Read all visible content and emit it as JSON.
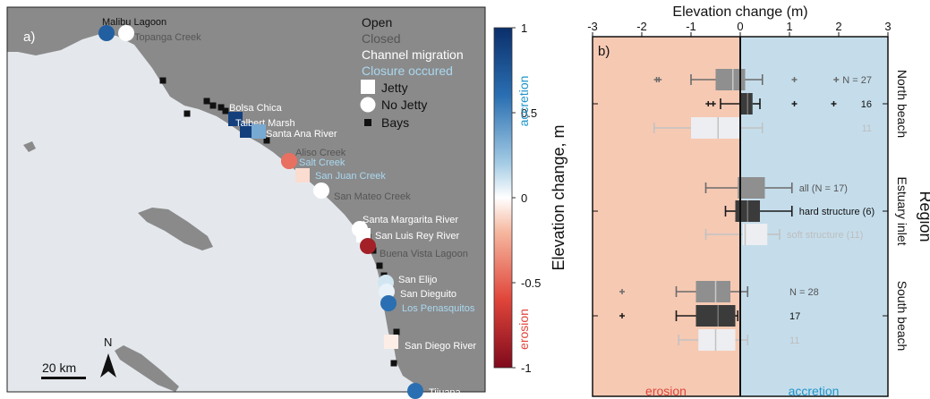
{
  "colors": {
    "land": "#8a8a8b",
    "ocean": "#e4e8ec",
    "erosion_bg": "#f6c9b3",
    "accretion_bg": "#c5ddeb",
    "accretion_label": "#1f94c9",
    "erosion_label": "#e0463c",
    "gray_series": "#8f8f8f",
    "dark_series": "#3b3b3b",
    "light_series": "#e9ebee"
  },
  "panel_a": {
    "label": "a)",
    "legend": {
      "open": "Open",
      "closed": "Closed",
      "channel_migration": "Channel migration",
      "closure_occurred": "Closure occured",
      "jetty": "Jetty",
      "no_jetty": "No Jetty",
      "bays": "Bays"
    },
    "scale_bar": "20 km",
    "north": "N",
    "sites": [
      {
        "name": "Malibu Lagoon",
        "status": "open",
        "shape": "circle",
        "elev": 0.7
      },
      {
        "name": "Topanga Creek",
        "status": "closed",
        "shape": "circle",
        "elev": 0.0
      },
      {
        "name": "Bolsa Chica",
        "status": "migration",
        "shape": "square",
        "elev": 0.9
      },
      {
        "name": "Talbert Marsh",
        "status": "migration",
        "shape": "square",
        "elev": 0.9
      },
      {
        "name": "Santa Ana River",
        "status": "migration",
        "shape": "square",
        "elev": 0.35
      },
      {
        "name": "Aliso Creek",
        "status": "closed",
        "shape": "circle",
        "elev": -0.45
      },
      {
        "name": "Salt Creek",
        "status": "closure",
        "shape": "circle",
        "elev": -0.45
      },
      {
        "name": "San Juan Creek",
        "status": "closure",
        "shape": "square",
        "elev": -0.1
      },
      {
        "name": "San Mateo Creek",
        "status": "closed",
        "shape": "circle",
        "elev": 0.0
      },
      {
        "name": "Santa Margarita River",
        "status": "migration",
        "shape": "circle",
        "elev": 0.0
      },
      {
        "name": "San Luis Rey River",
        "status": "migration",
        "shape": "square",
        "elev": 0.0
      },
      {
        "name": "Buena Vista Lagoon",
        "status": "closed",
        "shape": "circle",
        "elev": -0.85
      },
      {
        "name": "San Elijo",
        "status": "migration",
        "shape": "circle",
        "elev": 0.1
      },
      {
        "name": "San Dieguito",
        "status": "migration",
        "shape": "circle",
        "elev": 0.05
      },
      {
        "name": "Los Penasquitos",
        "status": "closure",
        "shape": "circle",
        "elev": 0.6
      },
      {
        "name": "San Diego River",
        "status": "migration",
        "shape": "square",
        "elev": -0.05
      },
      {
        "name": "Tijuana",
        "status": "migration",
        "shape": "circle",
        "elev": 0.6
      }
    ],
    "colorbar": {
      "label": "Elevation change, m",
      "ticks": [
        "1",
        "0.5",
        "0",
        "-0.5",
        "-1"
      ],
      "range": [
        -1,
        1
      ],
      "top_word": "accretion",
      "bottom_word": "erosion"
    }
  },
  "chart_data": {
    "type": "box",
    "panel_label": "b)",
    "title": "Elevation change (m)",
    "xlim": [
      -3,
      3
    ],
    "xticks": [
      "-3",
      "-2",
      "-1",
      "0",
      "1",
      "2",
      "3"
    ],
    "ylabel": "Region",
    "bottom_labels": {
      "left": "erosion",
      "right": "accretion"
    },
    "groups": [
      {
        "name": "North beach",
        "boxes": [
          {
            "series": "gray",
            "q1": -0.5,
            "median": -0.15,
            "q3": 0.1,
            "wl": -1.0,
            "wh": 0.45,
            "outliers": [
              -1.7,
              -1.65,
              1.1,
              1.95
            ],
            "label": "N = 27"
          },
          {
            "series": "dark",
            "q1": 0.0,
            "median": 0.15,
            "q3": 0.25,
            "wl": -0.4,
            "wh": 0.4,
            "outliers": [
              -0.65,
              -0.55,
              1.1,
              1.9
            ],
            "label": "16"
          },
          {
            "series": "light",
            "q1": -1.0,
            "median": -0.45,
            "q3": 0.0,
            "wl": -1.75,
            "wh": 0.45,
            "outliers": [],
            "label": "11"
          }
        ]
      },
      {
        "name": "Estuary inlet",
        "boxes": [
          {
            "series": "gray",
            "q1": -0.05,
            "median": 0.0,
            "q3": 0.5,
            "wl": -0.7,
            "wh": 1.05,
            "outliers": [],
            "label": "all (N = 17)"
          },
          {
            "series": "dark",
            "q1": -0.1,
            "median": 0.15,
            "q3": 0.4,
            "wl": -0.3,
            "wh": 1.05,
            "outliers": [],
            "label": "hard structure (6)"
          },
          {
            "series": "light",
            "q1": 0.05,
            "median": 0.1,
            "q3": 0.55,
            "wl": -0.7,
            "wh": 0.8,
            "outliers": [],
            "label": "soft structure (11)"
          }
        ]
      },
      {
        "name": "South beach",
        "boxes": [
          {
            "series": "gray",
            "q1": -0.9,
            "median": -0.5,
            "q3": -0.2,
            "wl": -1.3,
            "wh": 0.15,
            "outliers": [
              -2.4
            ],
            "label": "N = 28"
          },
          {
            "series": "dark",
            "q1": -0.9,
            "median": -0.45,
            "q3": -0.1,
            "wl": -1.3,
            "wh": -0.05,
            "outliers": [
              -2.4
            ],
            "label": "17"
          },
          {
            "series": "light",
            "q1": -0.85,
            "median": -0.5,
            "q3": -0.1,
            "wl": -1.25,
            "wh": 0.15,
            "outliers": [],
            "label": "11"
          }
        ]
      }
    ]
  }
}
